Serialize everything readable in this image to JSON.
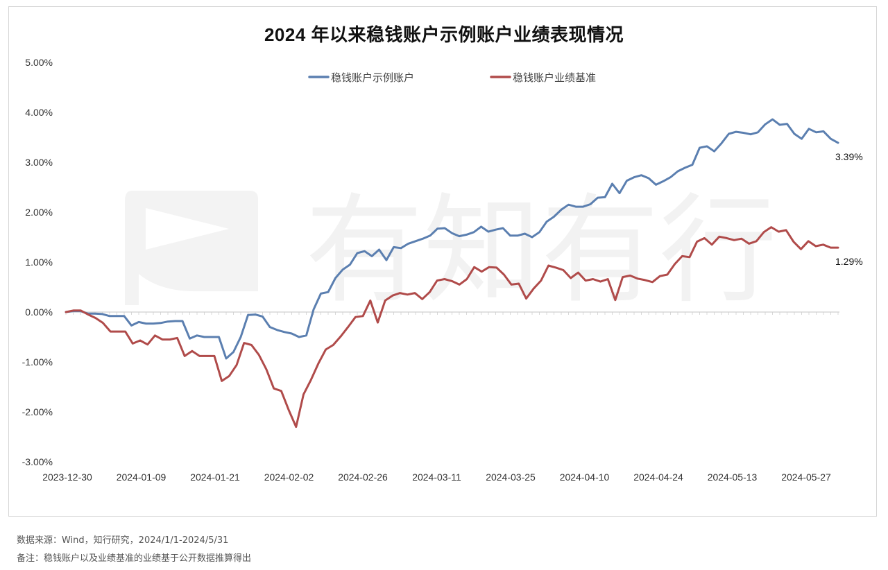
{
  "title": "2024 年以来稳钱账户示例账户业绩表现情况",
  "footnotes": {
    "source": "数据来源：Wind，知行研究，2024/1/1-2024/5/31",
    "note": "备注：稳钱账户以及业绩基准的业绩基于公开数据推算得出"
  },
  "watermark": {
    "text": "有知有行"
  },
  "chart_data": {
    "type": "line",
    "x_ticks": [
      "2023-12-30",
      "2024-01-09",
      "2024-01-21",
      "2024-02-02",
      "2024-02-26",
      "2024-03-11",
      "2024-03-25",
      "2024-04-10",
      "2024-04-24",
      "2024-05-13",
      "2024-05-27"
    ],
    "y_ticks": [
      "5.00%",
      "4.00%",
      "3.00%",
      "2.00%",
      "1.00%",
      "0.00%",
      "-1.00%",
      "-2.00%",
      "-3.00%"
    ],
    "ylim": [
      -3,
      5
    ],
    "legend_position": "top-center",
    "series": [
      {
        "name": "稳钱账户示例账户",
        "color": "#5b7fb0",
        "end_label": "3.39%",
        "values": [
          0.0,
          0.02,
          0.02,
          -0.03,
          -0.03,
          -0.04,
          -0.08,
          -0.08,
          -0.08,
          -0.27,
          -0.2,
          -0.23,
          -0.23,
          -0.22,
          -0.19,
          -0.18,
          -0.18,
          -0.53,
          -0.47,
          -0.5,
          -0.5,
          -0.5,
          -0.93,
          -0.8,
          -0.5,
          -0.06,
          -0.05,
          -0.09,
          -0.3,
          -0.36,
          -0.4,
          -0.43,
          -0.5,
          -0.47,
          0.05,
          0.37,
          0.4,
          0.68,
          0.85,
          0.95,
          1.18,
          1.22,
          1.12,
          1.25,
          1.04,
          1.3,
          1.28,
          1.37,
          1.42,
          1.47,
          1.53,
          1.67,
          1.68,
          1.58,
          1.52,
          1.55,
          1.6,
          1.71,
          1.61,
          1.65,
          1.68,
          1.53,
          1.53,
          1.57,
          1.5,
          1.6,
          1.81,
          1.91,
          2.05,
          2.15,
          2.11,
          2.11,
          2.16,
          2.29,
          2.3,
          2.57,
          2.38,
          2.63,
          2.7,
          2.74,
          2.68,
          2.55,
          2.62,
          2.7,
          2.82,
          2.89,
          2.95,
          3.29,
          3.32,
          3.22,
          3.38,
          3.57,
          3.61,
          3.59,
          3.56,
          3.6,
          3.76,
          3.86,
          3.75,
          3.77,
          3.57,
          3.47,
          3.67,
          3.6,
          3.62,
          3.47,
          3.39
        ]
      },
      {
        "name": "稳钱账户业绩基准",
        "color": "#b04b4a",
        "end_label": "1.29%",
        "values": [
          0.0,
          0.03,
          0.03,
          -0.05,
          -0.12,
          -0.22,
          -0.39,
          -0.39,
          -0.39,
          -0.63,
          -0.57,
          -0.65,
          -0.47,
          -0.55,
          -0.55,
          -0.52,
          -0.88,
          -0.78,
          -0.88,
          -0.88,
          -0.88,
          -1.38,
          -1.28,
          -1.06,
          -0.62,
          -0.66,
          -0.86,
          -1.15,
          -1.53,
          -1.58,
          -1.96,
          -2.3,
          -1.65,
          -1.36,
          -1.03,
          -0.75,
          -0.66,
          -0.49,
          -0.3,
          -0.1,
          -0.08,
          0.23,
          -0.21,
          0.23,
          0.33,
          0.38,
          0.35,
          0.38,
          0.26,
          0.4,
          0.63,
          0.66,
          0.62,
          0.55,
          0.66,
          0.9,
          0.81,
          0.9,
          0.89,
          0.75,
          0.55,
          0.57,
          0.27,
          0.47,
          0.63,
          0.93,
          0.89,
          0.84,
          0.68,
          0.79,
          0.63,
          0.66,
          0.61,
          0.66,
          0.24,
          0.7,
          0.73,
          0.67,
          0.64,
          0.6,
          0.72,
          0.75,
          0.96,
          1.12,
          1.1,
          1.41,
          1.48,
          1.35,
          1.51,
          1.48,
          1.44,
          1.47,
          1.37,
          1.42,
          1.6,
          1.7,
          1.61,
          1.64,
          1.41,
          1.26,
          1.42,
          1.32,
          1.35,
          1.29,
          1.29
        ]
      }
    ]
  }
}
